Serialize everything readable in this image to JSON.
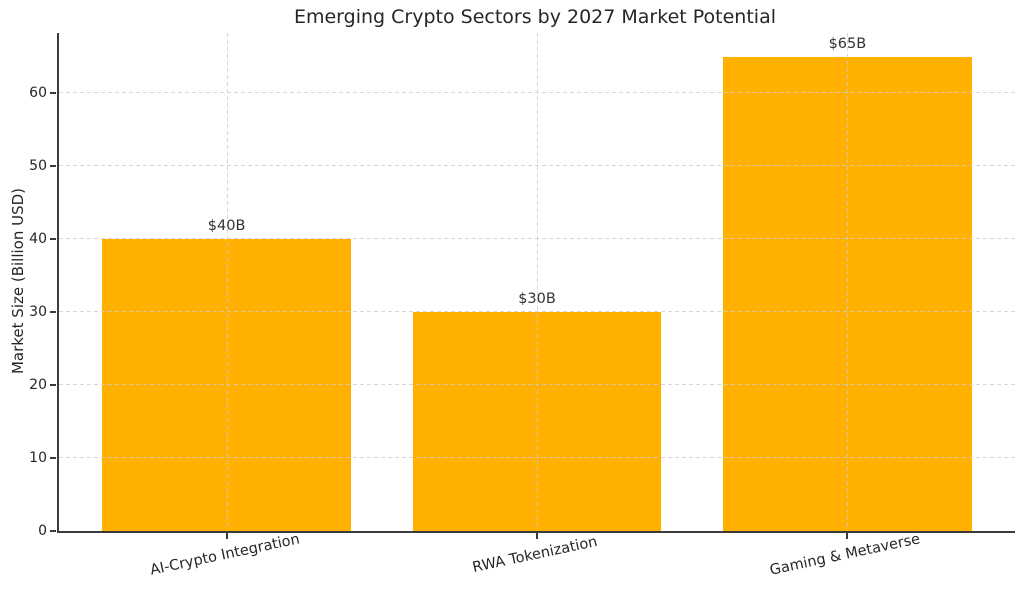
{
  "chart_data": {
    "type": "bar",
    "title": "Emerging Crypto Sectors by 2027 Market Potential",
    "xlabel": "",
    "ylabel": "Market Size (Billion USD)",
    "categories": [
      "AI-Crypto Integration",
      "RWA Tokenization",
      "Gaming & Metaverse"
    ],
    "values": [
      40,
      30,
      65
    ],
    "value_labels": [
      "$40B",
      "$30B",
      "$65B"
    ],
    "yticks": [
      0,
      10,
      20,
      30,
      40,
      50,
      60
    ],
    "ylim": [
      0,
      68.25
    ],
    "xlim": [
      -0.54,
      2.54
    ],
    "bar_width": 0.8,
    "bar_color": "#FFB000",
    "grid": "dashed",
    "gridline_color": "#cccccc",
    "spine_color": "#3a3a3a",
    "text_color": "#262626",
    "background": "#ffffff",
    "legend": "none",
    "x_label_rotation_deg": -12
  }
}
